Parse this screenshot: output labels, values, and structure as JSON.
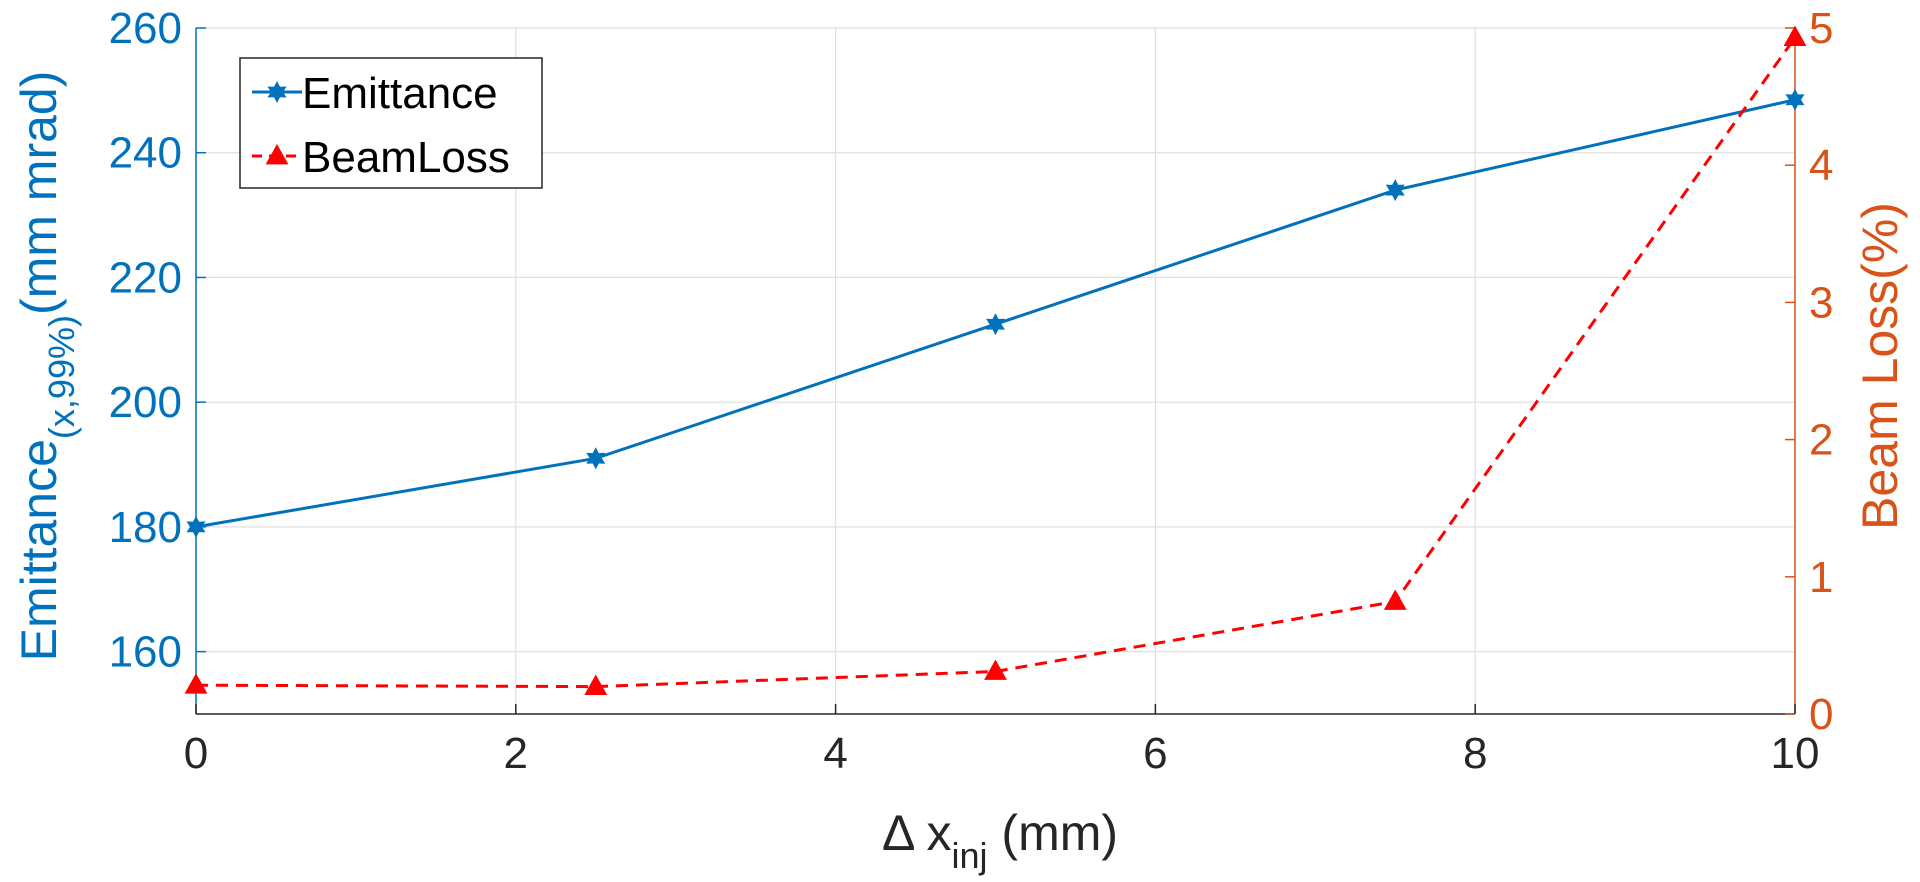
{
  "chart_data": {
    "type": "line",
    "xlabel": {
      "main": "Δ x",
      "sub": "inj",
      "unit": " (mm)"
    },
    "ylabel_left": {
      "main": "Emittance",
      "sub": "(x,99%)",
      "unit": "(mm mrad)"
    },
    "ylabel_right": "Beam Loss(%)",
    "x_ticks": [
      "0",
      "2",
      "4",
      "6",
      "8",
      "10"
    ],
    "y_left_ticks": [
      "160",
      "180",
      "200",
      "220",
      "240",
      "260"
    ],
    "y_right_ticks": [
      "0",
      "1",
      "2",
      "3",
      "4",
      "5"
    ],
    "xlim": [
      0,
      10
    ],
    "ylim_left": [
      150,
      260
    ],
    "ylim_right": [
      0,
      5
    ],
    "grid": true,
    "legend_position": "top-left",
    "series": [
      {
        "name": "Emittance",
        "axis": "left",
        "color": "#0072BD",
        "marker": "hexagram",
        "line_style": "solid",
        "x": [
          0,
          2.5,
          5,
          7.5,
          10
        ],
        "y": [
          180,
          191,
          212.5,
          234,
          248.5
        ]
      },
      {
        "name": "BeamLoss",
        "axis": "right",
        "color": "#FF0000",
        "marker": "triangle",
        "line_style": "dashed",
        "x": [
          0,
          2.5,
          5,
          7.5,
          10
        ],
        "y": [
          0.21,
          0.2,
          0.31,
          0.82,
          4.93
        ]
      }
    ],
    "colors": {
      "left_axis": "#0072BD",
      "right_axis": "#D95319",
      "x_axis": "#262626",
      "grid": "#DFDFDF"
    }
  }
}
